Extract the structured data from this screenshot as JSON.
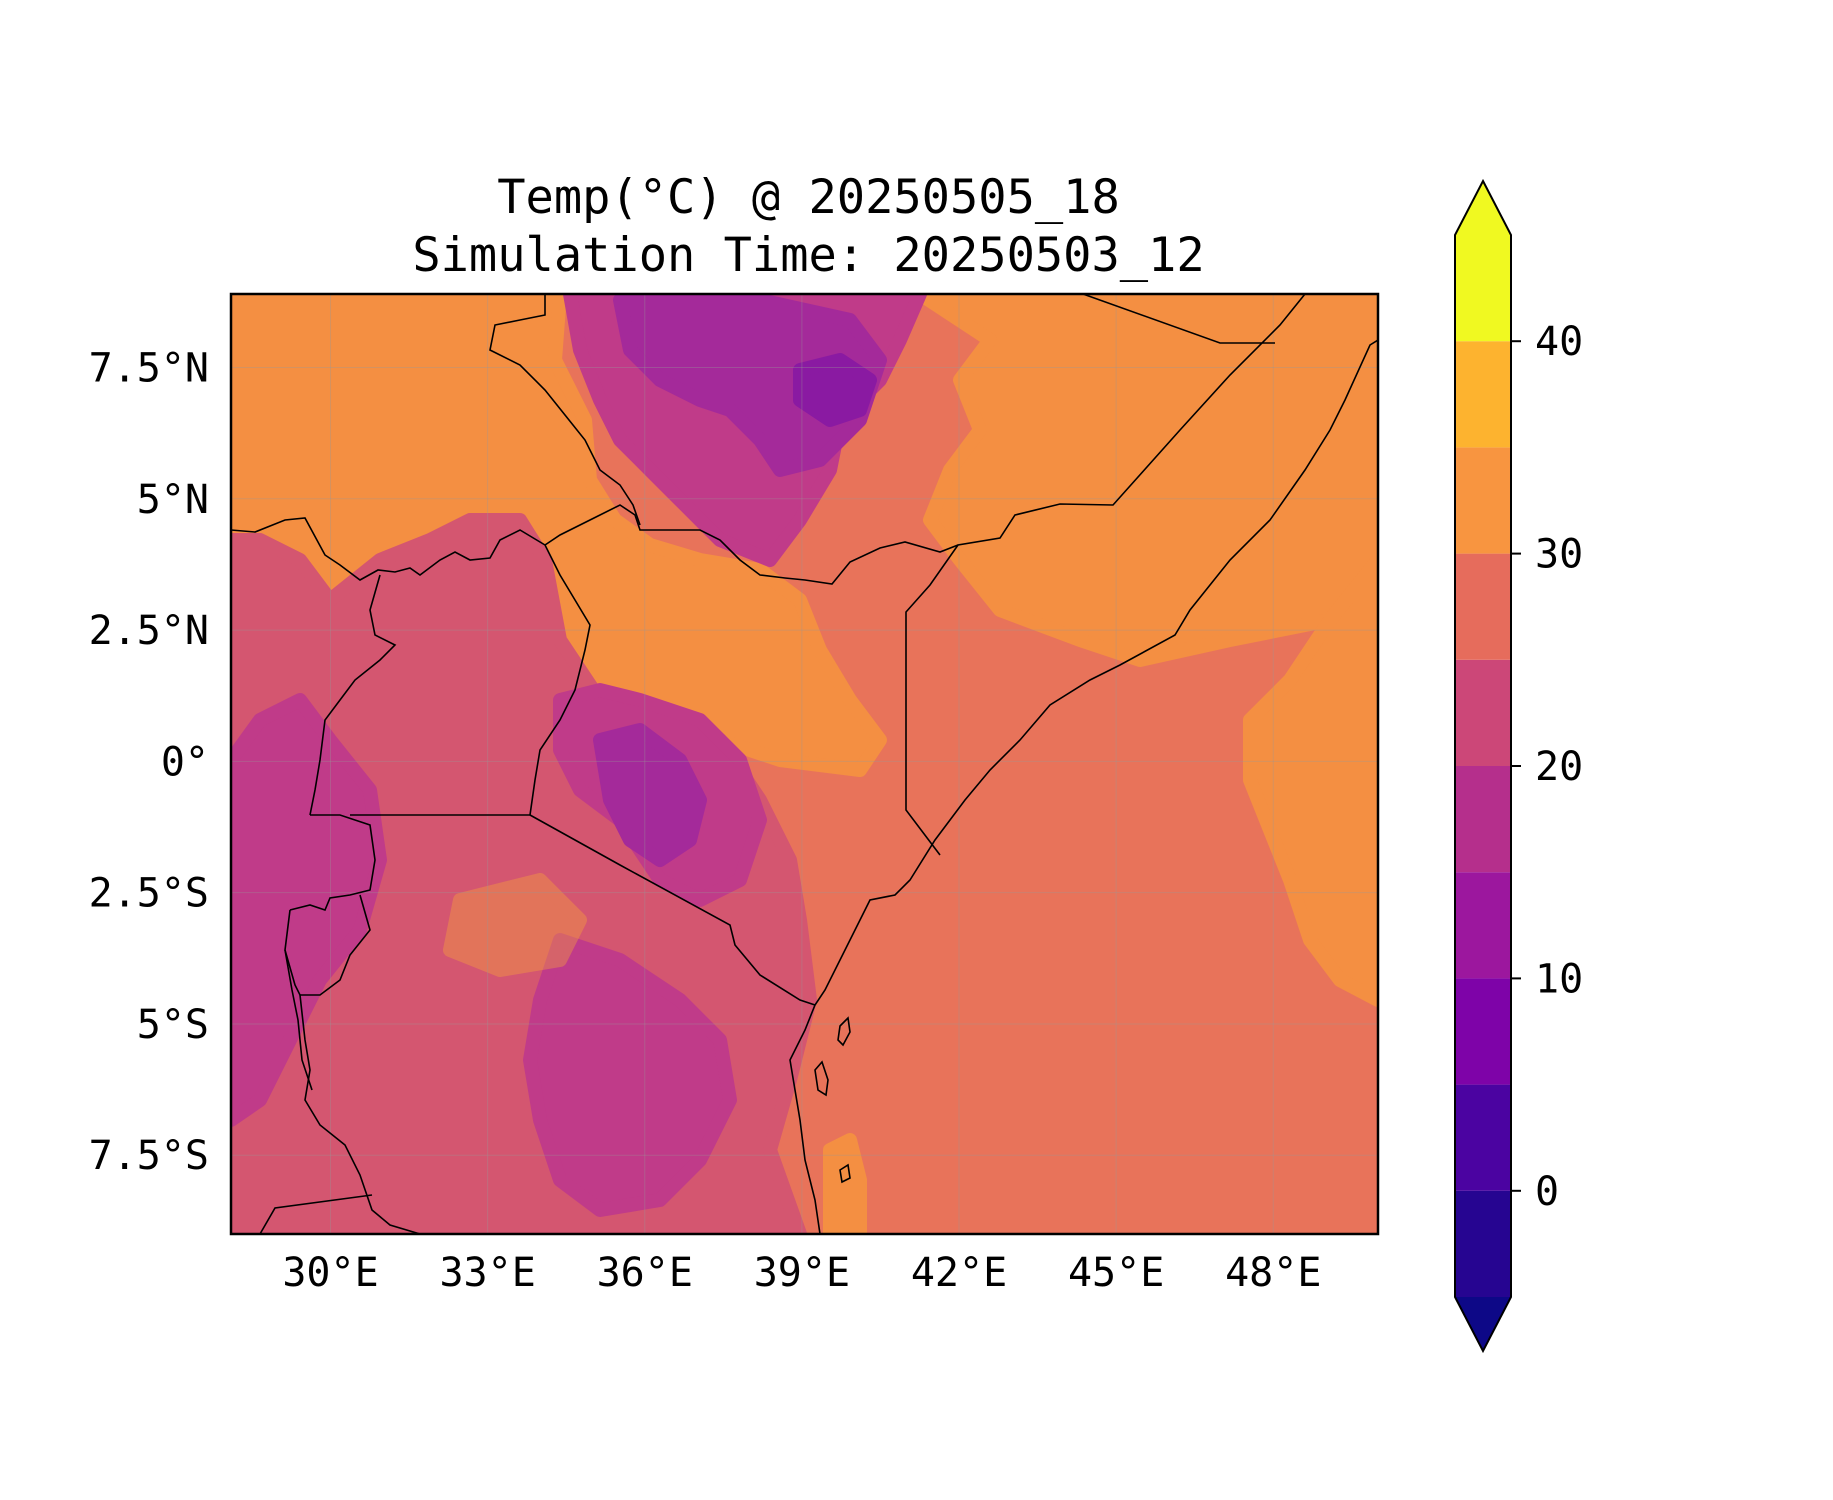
{
  "title": "Temp(°C) @ 20250505_18",
  "subtitle": "Simulation Time: 20250503_12",
  "map": {
    "extent": {
      "lon_min": 28.1,
      "lon_max": 50.0,
      "lat_min": -9.0,
      "lat_max": 8.9
    },
    "lon_ticks": [
      {
        "value": 30,
        "label": "30°E"
      },
      {
        "value": 33,
        "label": "33°E"
      },
      {
        "value": 36,
        "label": "36°E"
      },
      {
        "value": 39,
        "label": "39°E"
      },
      {
        "value": 42,
        "label": "42°E"
      },
      {
        "value": 45,
        "label": "45°E"
      },
      {
        "value": 48,
        "label": "48°E"
      }
    ],
    "lat_ticks": [
      {
        "value": 7.5,
        "label": "7.5°N"
      },
      {
        "value": 5,
        "label": "5°N"
      },
      {
        "value": 2.5,
        "label": "2.5°N"
      },
      {
        "value": 0,
        "label": "0°"
      },
      {
        "value": -2.5,
        "label": "2.5°S"
      },
      {
        "value": -5,
        "label": "5°S"
      },
      {
        "value": -7.5,
        "label": "7.5°S"
      }
    ],
    "gridlines": true,
    "colors": {
      "ocean": "#e8735a",
      "warm": "#f48f42",
      "mild": "#d45670",
      "cool": "#c03b89",
      "cold": "#a42a9a",
      "coldest": "#8a1aa2",
      "hot": "#fdae32"
    },
    "borders_color": "#000000"
  },
  "colorbar": {
    "ticks": [
      {
        "value": 0,
        "label": "0"
      },
      {
        "value": 10,
        "label": "10"
      },
      {
        "value": 20,
        "label": "20"
      },
      {
        "value": 30,
        "label": "30"
      },
      {
        "value": 40,
        "label": "40"
      }
    ],
    "levels": [
      -5,
      0,
      5,
      10,
      15,
      20,
      25,
      30,
      35,
      40,
      45
    ],
    "colors": [
      "#260591",
      "#4b03a1",
      "#7e03a8",
      "#9c179e",
      "#b52f8c",
      "#cc4778",
      "#e66c5c",
      "#f89540",
      "#fdb32f",
      "#f0f921"
    ],
    "under_color": "#0d0887",
    "over_color": "#f0f921",
    "extend": "both"
  }
}
